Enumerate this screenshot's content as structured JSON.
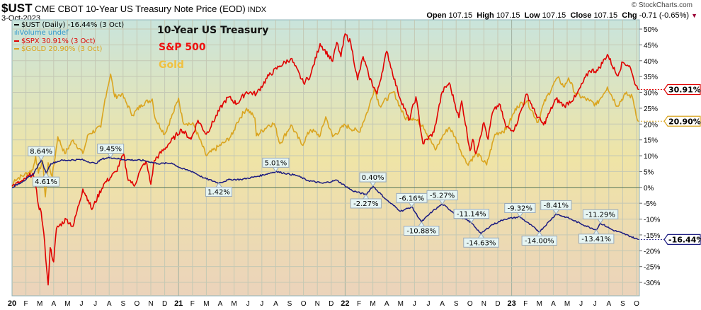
{
  "header": {
    "symbol": "$UST",
    "name": "CME CBOT 10-Year US Treasury Note Price (EOD)",
    "exchange": "INDX",
    "date": "3-Oct-2023",
    "copyright": "© StockCharts.com"
  },
  "ohlc": {
    "open_label": "Open",
    "open": "107.15",
    "high_label": "High",
    "high": "107.15",
    "low_label": "Low",
    "low": "107.15",
    "close_label": "Close",
    "close": "107.15",
    "chg_label": "Chg",
    "chg": "-0.71 (-0.65%)"
  },
  "legend": [
    {
      "text": "$UST (Daily) -16.44% (3 Oct)",
      "color": "#000000"
    },
    {
      "text": "Volume undef",
      "color": "#3399cc"
    },
    {
      "text": "$SPX 30.91% (3 Oct)",
      "color": "#e00000"
    },
    {
      "text": "$GOLD 20.90% (3 Oct)",
      "color": "#daa520"
    }
  ],
  "annotations": [
    {
      "text": "10-Year US Treasury",
      "color": "#111111"
    },
    {
      "text": "S&P 500",
      "color": "#ee1111"
    },
    {
      "text": "Gold",
      "color": "#f0c040"
    }
  ],
  "chart_data": {
    "type": "line",
    "title": "$UST CME CBOT 10-Year US Treasury Note Price (EOD) — percent change",
    "x_unit": "months since Jan 2020",
    "xlim": [
      0,
      45.4
    ],
    "ylim": [
      -33,
      53
    ],
    "y_ticks": [
      "50%",
      "45%",
      "40%",
      "35%",
      "30%",
      "25%",
      "20%",
      "15%",
      "10%",
      "5%",
      "0%",
      "-5%",
      "-10%",
      "-15%",
      "-20%",
      "-25%",
      "-30%"
    ],
    "y_tick_values": [
      50,
      45,
      40,
      35,
      30,
      25,
      20,
      15,
      10,
      5,
      0,
      -5,
      -10,
      -15,
      -20,
      -25,
      -30
    ],
    "x_ticks": [
      "20",
      "F",
      "M",
      "A",
      "M",
      "J",
      "J",
      "A",
      "S",
      "O",
      "N",
      "D",
      "21",
      "F",
      "M",
      "A",
      "M",
      "J",
      "J",
      "A",
      "S",
      "O",
      "N",
      "D",
      "22",
      "F",
      "M",
      "A",
      "M",
      "J",
      "J",
      "A",
      "S",
      "O",
      "N",
      "D",
      "23",
      "F",
      "M",
      "A",
      "M",
      "J",
      "J",
      "A",
      "S",
      "O"
    ],
    "grid": true,
    "legend_position": "top-left",
    "series": [
      {
        "name": "$SPX",
        "color": "#e00000",
        "end_label": "30.91%",
        "points": [
          [
            0,
            0.4
          ],
          [
            0.8,
            2
          ],
          [
            1.5,
            4.5
          ],
          [
            1.7,
            0.5
          ],
          [
            1.9,
            -5.6
          ],
          [
            2.1,
            -7.8
          ],
          [
            2.35,
            -17.4
          ],
          [
            2.5,
            -26
          ],
          [
            2.6,
            -30.8
          ],
          [
            2.75,
            -19
          ],
          [
            3,
            -23.5
          ],
          [
            3.2,
            -13
          ],
          [
            3.9,
            -10
          ],
          [
            4.4,
            -12.3
          ],
          [
            5.1,
            -0.5
          ],
          [
            5.5,
            -4
          ],
          [
            5.75,
            -7
          ],
          [
            6.6,
            1
          ],
          [
            7.5,
            5
          ],
          [
            8.05,
            10.5
          ],
          [
            8.3,
            3.4
          ],
          [
            8.8,
            0.4
          ],
          [
            9.2,
            5
          ],
          [
            9.65,
            8.3
          ],
          [
            10,
            1
          ],
          [
            10.25,
            8.5
          ],
          [
            11.3,
            13.8
          ],
          [
            12.2,
            18.3
          ],
          [
            12.9,
            15.2
          ],
          [
            13.4,
            21.2
          ],
          [
            14,
            16.8
          ],
          [
            15.2,
            26.4
          ],
          [
            15.6,
            28.5
          ],
          [
            16.2,
            26.4
          ],
          [
            16.9,
            30.2
          ],
          [
            17.6,
            29.5
          ],
          [
            18.5,
            35.3
          ],
          [
            19.3,
            38.4
          ],
          [
            20.1,
            40.7
          ],
          [
            21,
            33
          ],
          [
            21.5,
            35.3
          ],
          [
            22.2,
            45.4
          ],
          [
            23.1,
            39.8
          ],
          [
            23.4,
            45.8
          ],
          [
            23.7,
            41.3
          ],
          [
            24,
            48.5
          ],
          [
            24.4,
            45.8
          ],
          [
            24.9,
            34
          ],
          [
            25.3,
            41.3
          ],
          [
            25.7,
            35.3
          ],
          [
            26.3,
            29.5
          ],
          [
            27,
            43
          ],
          [
            27.8,
            30.2
          ],
          [
            28.6,
            21.2
          ],
          [
            29.1,
            28.6
          ],
          [
            29.6,
            13.8
          ],
          [
            30.4,
            17.4
          ],
          [
            30.7,
            24.1
          ],
          [
            31.0,
            30.2
          ],
          [
            31.5,
            33
          ],
          [
            32.2,
            22
          ],
          [
            32.4,
            27.3
          ],
          [
            33,
            11.6
          ],
          [
            33.2,
            15.2
          ],
          [
            33.4,
            10.7
          ],
          [
            34,
            20.5
          ],
          [
            34.3,
            15.2
          ],
          [
            34.6,
            23.4
          ],
          [
            35.1,
            26.4
          ],
          [
            35.6,
            19
          ],
          [
            36.2,
            18.3
          ],
          [
            37.1,
            29.5
          ],
          [
            37.7,
            23.4
          ],
          [
            38.3,
            19.7
          ],
          [
            38.7,
            23.4
          ],
          [
            39.2,
            27.9
          ],
          [
            39.8,
            25.7
          ],
          [
            40.6,
            28.6
          ],
          [
            41.6,
            36.9
          ],
          [
            42.2,
            36.9
          ],
          [
            42.9,
            42
          ],
          [
            43.6,
            35.3
          ],
          [
            44,
            39.5
          ],
          [
            44.5,
            38.4
          ],
          [
            44.8,
            34
          ],
          [
            45.1,
            30.91
          ]
        ]
      },
      {
        "name": "$GOLD",
        "color": "#daa520",
        "end_label": "20.90%",
        "points": [
          [
            0,
            0
          ],
          [
            0.2,
            2.5
          ],
          [
            0.9,
            4
          ],
          [
            1.5,
            5.6
          ],
          [
            1.7,
            10
          ],
          [
            1.9,
            4.5
          ],
          [
            2.2,
            8.5
          ],
          [
            2.4,
            -3
          ],
          [
            2.6,
            7.8
          ],
          [
            2.9,
            3.4
          ],
          [
            3.3,
            16
          ],
          [
            3.8,
            10.7
          ],
          [
            4.4,
            15
          ],
          [
            5.1,
            10.7
          ],
          [
            5.5,
            16.8
          ],
          [
            6.4,
            19
          ],
          [
            6.7,
            27.9
          ],
          [
            7.1,
            35.8
          ],
          [
            7.4,
            28.6
          ],
          [
            7.9,
            29.5
          ],
          [
            8.7,
            22.8
          ],
          [
            9.3,
            26.1
          ],
          [
            10.1,
            27.9
          ],
          [
            10.3,
            21.9
          ],
          [
            11,
            16.8
          ],
          [
            11.6,
            23.4
          ],
          [
            12,
            28.2
          ],
          [
            12.3,
            20.8
          ],
          [
            13.1,
            19.7
          ],
          [
            14,
            10
          ],
          [
            14.9,
            13
          ],
          [
            15.4,
            14.5
          ],
          [
            15.9,
            16.8
          ],
          [
            16.2,
            20.5
          ],
          [
            16.9,
            25
          ],
          [
            17.5,
            21.9
          ],
          [
            17.6,
            16.3
          ],
          [
            18.5,
            19.7
          ],
          [
            18.9,
            20.1
          ],
          [
            19.3,
            13.8
          ],
          [
            20.1,
            19.7
          ],
          [
            20.9,
            13.4
          ],
          [
            21.5,
            18.3
          ],
          [
            22.2,
            16.3
          ],
          [
            22.6,
            22.3
          ],
          [
            23.1,
            16
          ],
          [
            24,
            19.7
          ],
          [
            25,
            17.4
          ],
          [
            25.7,
            25
          ],
          [
            26.1,
            31.3
          ],
          [
            26.5,
            25.7
          ],
          [
            27.5,
            30.2
          ],
          [
            28.3,
            21.9
          ],
          [
            28.9,
            21.9
          ],
          [
            29.6,
            19.7
          ],
          [
            30.5,
            11.8
          ],
          [
            31,
            16
          ],
          [
            31.5,
            19
          ],
          [
            31.9,
            16.1
          ],
          [
            32.5,
            10
          ],
          [
            32.8,
            7.4
          ],
          [
            33.5,
            10.7
          ],
          [
            34.2,
            7.1
          ],
          [
            34.8,
            16.8
          ],
          [
            35.6,
            18.3
          ],
          [
            36.4,
            25.7
          ],
          [
            37.1,
            27.3
          ],
          [
            37.9,
            20.5
          ],
          [
            38.3,
            26.4
          ],
          [
            39,
            32.4
          ],
          [
            39.3,
            34.6
          ],
          [
            39.8,
            31.7
          ],
          [
            40.1,
            34.6
          ],
          [
            40.6,
            29.5
          ],
          [
            41.6,
            27.3
          ],
          [
            42.1,
            26.1
          ],
          [
            42.9,
            31.7
          ],
          [
            43.6,
            25.7
          ],
          [
            44.2,
            29.5
          ],
          [
            44.7,
            28.6
          ],
          [
            45.1,
            20.9
          ]
        ]
      },
      {
        "name": "$UST",
        "color": "#1a1a80",
        "end_label": "-16.44%",
        "points": [
          [
            0,
            0
          ],
          [
            0.8,
            2
          ],
          [
            1.5,
            4
          ],
          [
            2.1,
            8.64
          ],
          [
            2.45,
            4.61
          ],
          [
            2.8,
            7.5
          ],
          [
            3.5,
            8.5
          ],
          [
            5,
            8.8
          ],
          [
            6,
            7.5
          ],
          [
            6.5,
            9
          ],
          [
            7.1,
            9.45
          ],
          [
            8,
            8.8
          ],
          [
            9.5,
            8.5
          ],
          [
            10.5,
            7.5
          ],
          [
            11.5,
            7.7
          ],
          [
            12.2,
            6
          ],
          [
            13,
            5
          ],
          [
            13.8,
            3
          ],
          [
            14.9,
            1.42
          ],
          [
            15.7,
            2.5
          ],
          [
            16.5,
            2.5
          ],
          [
            17.7,
            3.5
          ],
          [
            19,
            5.01
          ],
          [
            20.5,
            3.8
          ],
          [
            21.3,
            2.2
          ],
          [
            22.4,
            1.3
          ],
          [
            23.4,
            2.3
          ],
          [
            24.5,
            -1
          ],
          [
            25.5,
            -2.27
          ],
          [
            26,
            0.4
          ],
          [
            27,
            -4
          ],
          [
            28,
            -7.5
          ],
          [
            28.8,
            -6.16
          ],
          [
            29.5,
            -10.88
          ],
          [
            30.3,
            -7.5
          ],
          [
            31,
            -5.27
          ],
          [
            32,
            -8.5
          ],
          [
            33.1,
            -11.14
          ],
          [
            33.8,
            -14.63
          ],
          [
            34.5,
            -12
          ],
          [
            35.5,
            -10
          ],
          [
            36.6,
            -9.32
          ],
          [
            38,
            -14
          ],
          [
            39.2,
            -8.41
          ],
          [
            40,
            -9.5
          ],
          [
            41,
            -11.5
          ],
          [
            42.1,
            -13.41
          ],
          [
            42.4,
            -11.29
          ],
          [
            43.3,
            -13.5
          ],
          [
            44,
            -14.5
          ],
          [
            45.1,
            -16.44
          ]
        ],
        "labels": [
          {
            "m": 2.1,
            "v": 8.64,
            "text": "8.64%",
            "pos": "above"
          },
          {
            "m": 2.45,
            "v": 4.61,
            "text": "4.61%",
            "pos": "below"
          },
          {
            "m": 7.1,
            "v": 9.45,
            "text": "9.45%",
            "pos": "above"
          },
          {
            "m": 14.9,
            "v": 1.42,
            "text": "1.42%",
            "pos": "below"
          },
          {
            "m": 19,
            "v": 5.01,
            "text": "5.01%",
            "pos": "above"
          },
          {
            "m": 26,
            "v": 0.4,
            "text": "0.40%",
            "pos": "above"
          },
          {
            "m": 25.5,
            "v": -2.27,
            "text": "-2.27%",
            "pos": "below"
          },
          {
            "m": 28.8,
            "v": -6.16,
            "text": "-6.16%",
            "pos": "above"
          },
          {
            "m": 29.5,
            "v": -10.88,
            "text": "-10.88%",
            "pos": "below"
          },
          {
            "m": 31,
            "v": -5.27,
            "text": "-5.27%",
            "pos": "above"
          },
          {
            "m": 33.1,
            "v": -11.14,
            "text": "-11.14%",
            "pos": "above"
          },
          {
            "m": 33.8,
            "v": -14.63,
            "text": "-14.63%",
            "pos": "below"
          },
          {
            "m": 36.6,
            "v": -9.32,
            "text": "-9.32%",
            "pos": "above"
          },
          {
            "m": 38,
            "v": -14.0,
            "text": "-14.00%",
            "pos": "below"
          },
          {
            "m": 39.2,
            "v": -8.41,
            "text": "-8.41%",
            "pos": "above"
          },
          {
            "m": 42.4,
            "v": -11.29,
            "text": "-11.29%",
            "pos": "above"
          },
          {
            "m": 42.1,
            "v": -13.41,
            "text": "-13.41%",
            "pos": "below"
          }
        ]
      }
    ]
  }
}
